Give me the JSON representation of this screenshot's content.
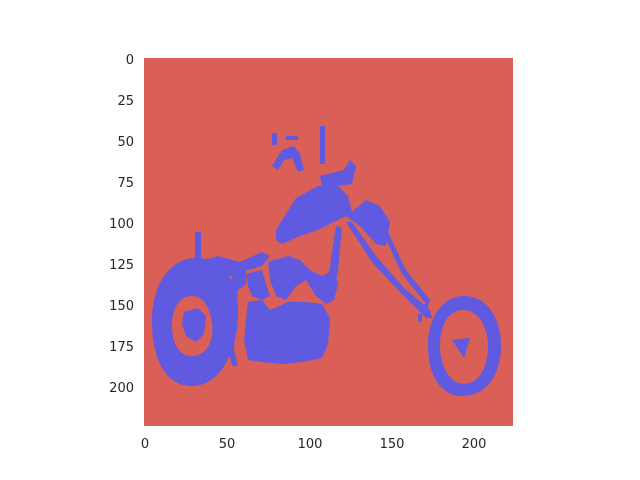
{
  "image": {
    "description_type": "segmentation-mask",
    "background_color": "#d95f57",
    "foreground_color": "#5f5ae0"
  },
  "axes": {
    "x_ticks": [
      "0",
      "50",
      "100",
      "150",
      "200"
    ],
    "y_ticks": [
      "0",
      "25",
      "50",
      "75",
      "100",
      "125",
      "150",
      "175",
      "200"
    ],
    "x_range": [
      0,
      224
    ],
    "y_range": [
      0,
      224
    ]
  }
}
